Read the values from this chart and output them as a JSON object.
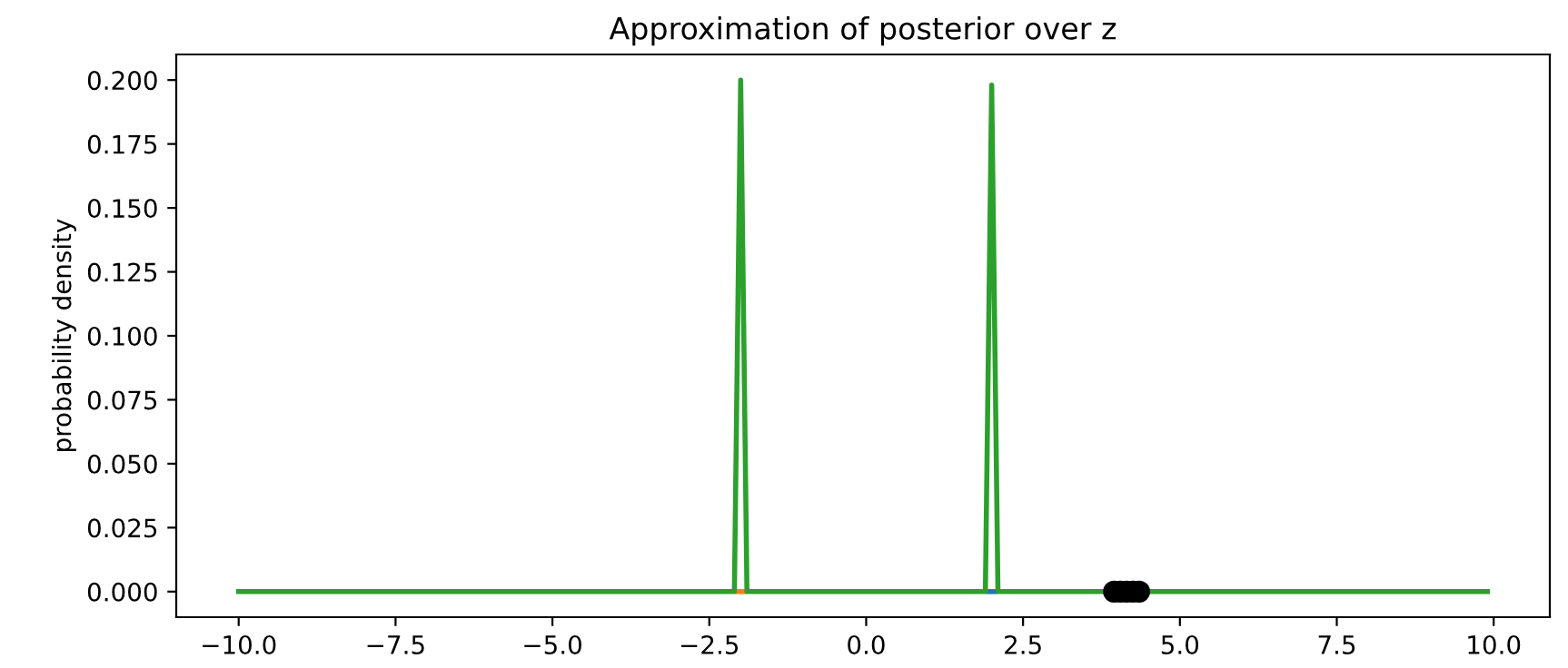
{
  "chart_data": {
    "type": "line",
    "title": "Approximation of posterior over z",
    "ylabel": "probability density",
    "series": [
      {
        "color": "#1f77b4",
        "x": [
          1.95,
          2,
          2.05
        ],
        "values": [
          0,
          0,
          0
        ]
      },
      {
        "color": "#ff7f0e",
        "x": [
          -2.05,
          -2,
          -1.95
        ],
        "values": [
          0,
          0,
          0
        ]
      },
      {
        "color": "#2ca02c",
        "x": [
          -10,
          -2.1,
          -2,
          -1.9,
          1.9,
          2,
          2.1,
          9.9
        ],
        "values": [
          0,
          0,
          0.2,
          0,
          0,
          0.198,
          0,
          0
        ]
      },
      {
        "type": "scatter",
        "color": "#000000",
        "marker": "circle",
        "x": [
          3.95,
          4.05,
          4.15,
          4.25,
          4.35
        ],
        "values": [
          0,
          0,
          0,
          0,
          0
        ]
      }
    ],
    "xlim": [
      -10.995,
      10.895
    ],
    "ylim": [
      -0.01,
      0.21
    ],
    "xticks": [
      {
        "value": -10,
        "label": "−10.0"
      },
      {
        "value": -7.5,
        "label": "−7.5"
      },
      {
        "value": -5,
        "label": "−5.0"
      },
      {
        "value": -2.5,
        "label": "−2.5"
      },
      {
        "value": 0,
        "label": "0.0"
      },
      {
        "value": 2.5,
        "label": "2.5"
      },
      {
        "value": 5,
        "label": "5.0"
      },
      {
        "value": 7.5,
        "label": "7.5"
      },
      {
        "value": 10,
        "label": "10.0"
      }
    ],
    "yticks": [
      {
        "value": 0,
        "label": "0.000"
      },
      {
        "value": 0.025,
        "label": "0.025"
      },
      {
        "value": 0.05,
        "label": "0.050"
      },
      {
        "value": 0.075,
        "label": "0.075"
      },
      {
        "value": 0.1,
        "label": "0.100"
      },
      {
        "value": 0.125,
        "label": "0.125"
      },
      {
        "value": 0.15,
        "label": "0.150"
      },
      {
        "value": 0.175,
        "label": "0.175"
      },
      {
        "value": 0.2,
        "label": "0.200"
      }
    ],
    "grid": false
  }
}
